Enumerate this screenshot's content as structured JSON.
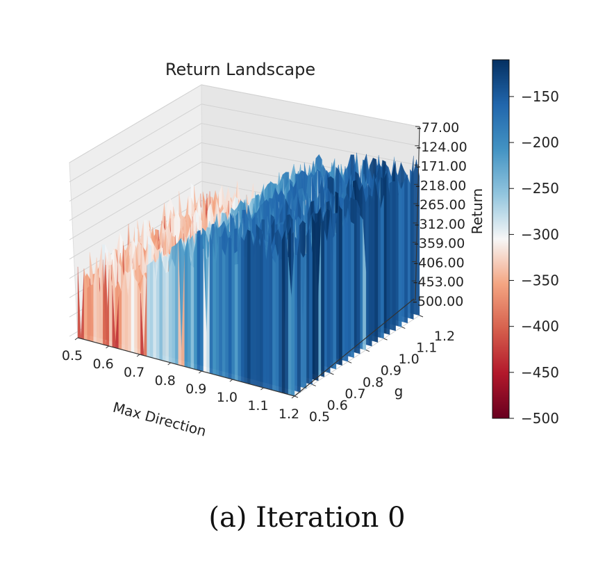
{
  "chart_data": {
    "type": "surface3d",
    "title": "Return Landscape",
    "xlabel": "Max Direction",
    "ylabel": "g",
    "zlabel": "Return",
    "x_ticks": [
      "0.5",
      "0.6",
      "0.7",
      "0.8",
      "0.9",
      "1.0",
      "1.1",
      "1.2"
    ],
    "y_ticks": [
      "0.5",
      "0.6",
      "0.7",
      "0.8",
      "0.9",
      "1.0",
      "1.1",
      "1.2"
    ],
    "z_ticks": [
      "-77.00",
      "-124.00",
      "-171.00",
      "-218.00",
      "-265.00",
      "-312.00",
      "-359.00",
      "-406.00",
      "-453.00",
      "-500.00"
    ],
    "xlim": [
      0.5,
      1.2
    ],
    "ylim": [
      0.5,
      1.2
    ],
    "zlim": [
      -500,
      -77
    ],
    "colormap": "RdBu",
    "colorbar": {
      "ticks": [
        "−150",
        "−200",
        "−250",
        "−300",
        "−350",
        "−400",
        "−450",
        "−500"
      ],
      "min": -500,
      "max": -110
    },
    "grid": true,
    "surface_trend": [
      {
        "x": 0.5,
        "return": -340
      },
      {
        "x": 0.7,
        "return": -330
      },
      {
        "x": 0.8,
        "return": -250
      },
      {
        "x": 0.9,
        "return": -200
      },
      {
        "x": 1.0,
        "return": -180
      },
      {
        "x": 1.1,
        "return": -160
      },
      {
        "x": 1.2,
        "return": -140
      }
    ]
  },
  "caption": "(a) Iteration 0"
}
